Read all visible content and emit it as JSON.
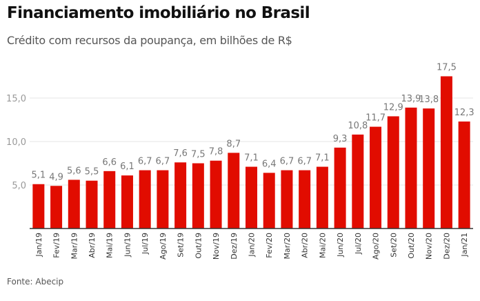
{
  "header": {
    "title": "Financiamento imobiliário no Brasil",
    "subtitle": "Crédito com recursos da poupança, em bilhões de R$"
  },
  "footer": {
    "source": "Fonte: Abecip"
  },
  "colors": {
    "bar": "#e10c00",
    "grid": "#e6e6e6",
    "axis": "#333333"
  },
  "chart_data": {
    "type": "bar",
    "title": "Financiamento imobiliário no Brasil",
    "subtitle": "Crédito com recursos da poupança, em bilhões de R$",
    "xlabel": "",
    "ylabel": "",
    "ylim": [
      0,
      17.5
    ],
    "yticks": [
      5,
      10,
      15
    ],
    "ytick_labels": [
      "5,0",
      "10,0",
      "15,0"
    ],
    "grid": true,
    "legend": "none",
    "categories": [
      "Jan/19",
      "Fev/19",
      "Mar/19",
      "Abr/19",
      "Mai/19",
      "Jun/19",
      "Jul/19",
      "Ago/19",
      "Set/19",
      "Out/19",
      "Nov/19",
      "Dez/19",
      "Jan/20",
      "Fev/20",
      "Mar/20",
      "Abr/20",
      "Mai/20",
      "Jun/20",
      "Jul/20",
      "Ago/20",
      "Set/20",
      "Out/20",
      "Nov/20",
      "Dez/20",
      "Jan/21"
    ],
    "values": [
      5.1,
      4.9,
      5.6,
      5.5,
      6.6,
      6.1,
      6.7,
      6.7,
      7.6,
      7.5,
      7.8,
      8.7,
      7.1,
      6.4,
      6.7,
      6.7,
      7.1,
      9.3,
      10.8,
      11.7,
      12.9,
      13.9,
      13.8,
      17.5,
      12.3
    ],
    "value_labels": [
      "5,1",
      "4,9",
      "5,6",
      "5,5",
      "6,6",
      "6,1",
      "6,7",
      "6,7",
      "7,6",
      "7,5",
      "7,8",
      "8,7",
      "7,1",
      "6,4",
      "6,7",
      "6,7",
      "7,1",
      "9,3",
      "10,8",
      "11,7",
      "12,9",
      "13,9",
      "13,8",
      "17,5",
      "12,3"
    ],
    "source": "Fonte: Abecip"
  }
}
